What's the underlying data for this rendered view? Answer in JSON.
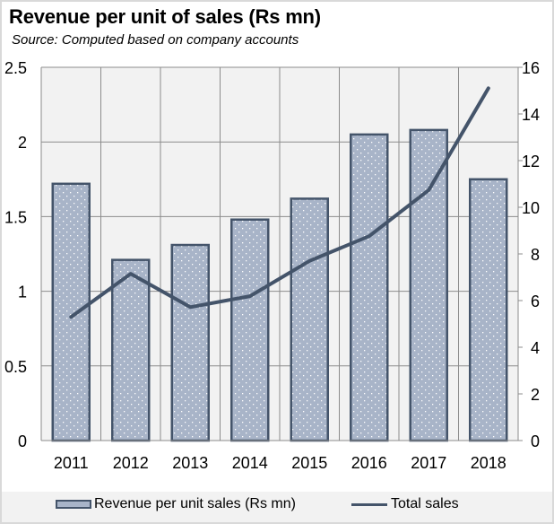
{
  "chart_data": {
    "type": "bar",
    "title": "Revenue per unit of sales (Rs mn)",
    "subtitle": "Source: Computed based on company accounts",
    "categories": [
      "2011",
      "2012",
      "2013",
      "2014",
      "2015",
      "2016",
      "2017",
      "2018"
    ],
    "series": [
      {
        "name": "Revenue per unit sales (Rs mn)",
        "type": "bar",
        "axis": "left",
        "values": [
          1.72,
          1.21,
          1.31,
          1.48,
          1.62,
          2.05,
          2.08,
          1.75
        ]
      },
      {
        "name": "Total sales",
        "type": "line",
        "axis": "right",
        "values": [
          5.3,
          7.15,
          5.72,
          6.19,
          7.7,
          8.76,
          10.74,
          15.1
        ]
      }
    ],
    "y_left": {
      "min": 0,
      "max": 2.5,
      "ticks": [
        "0",
        "0.5",
        "1",
        "1.5",
        "2",
        "2.5"
      ],
      "tick_values": [
        0,
        0.5,
        1,
        1.5,
        2,
        2.5
      ]
    },
    "y_right": {
      "min": 0,
      "max": 16,
      "ticks": [
        "0",
        "2",
        "4",
        "6",
        "8",
        "10",
        "12",
        "14",
        "16"
      ],
      "tick_values": [
        0,
        2,
        4,
        6,
        8,
        10,
        12,
        14,
        16
      ]
    },
    "xlabel": "",
    "ylabel": "",
    "grid": true,
    "legend_position": "bottom",
    "colors": {
      "bar_fill": "#a8b4c8",
      "bar_edge": "#44546a",
      "line": "#44546a",
      "plot_bg": "#f2f2f2",
      "grid": "#8c8c8c"
    }
  },
  "legend": {
    "bar_label": "Revenue per unit sales (Rs mn)",
    "line_label": "Total sales"
  }
}
